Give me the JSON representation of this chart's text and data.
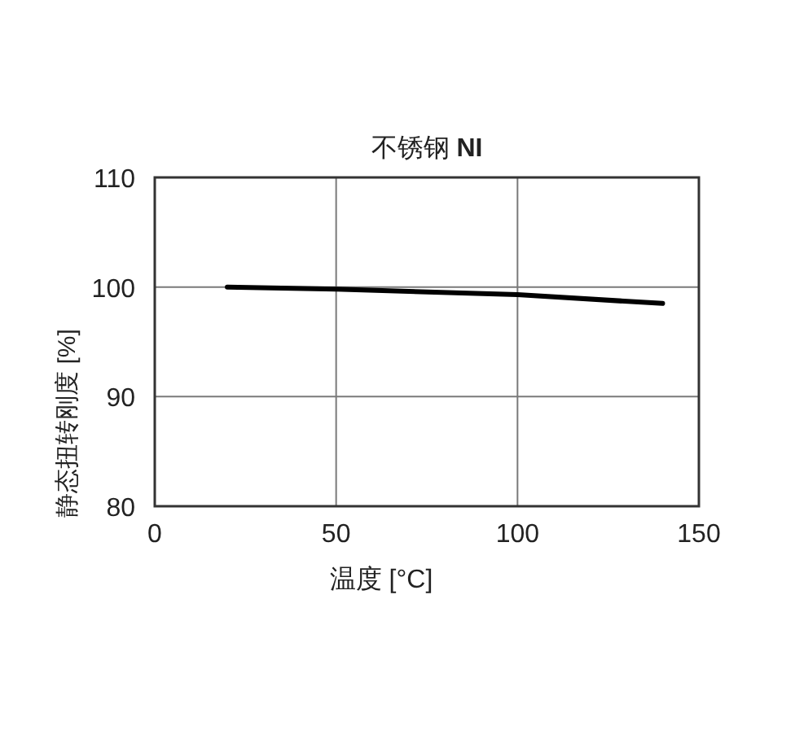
{
  "chart_data": {
    "type": "line",
    "title": "不锈钢 **NI**",
    "xlabel": "温度 [°C]",
    "ylabel": "静态扭转刚度 [%]",
    "x": [
      20,
      50,
      100,
      140
    ],
    "series": [
      {
        "color": "#000000",
        "values": [
          100,
          99.8,
          99.3,
          98.5
        ]
      }
    ],
    "xlim": [
      0,
      150
    ],
    "ylim": [
      80,
      110
    ],
    "xticks": [
      0,
      50,
      100,
      150
    ],
    "yticks": [
      80,
      90,
      100,
      110
    ],
    "grid": true,
    "line_style": "solid"
  }
}
